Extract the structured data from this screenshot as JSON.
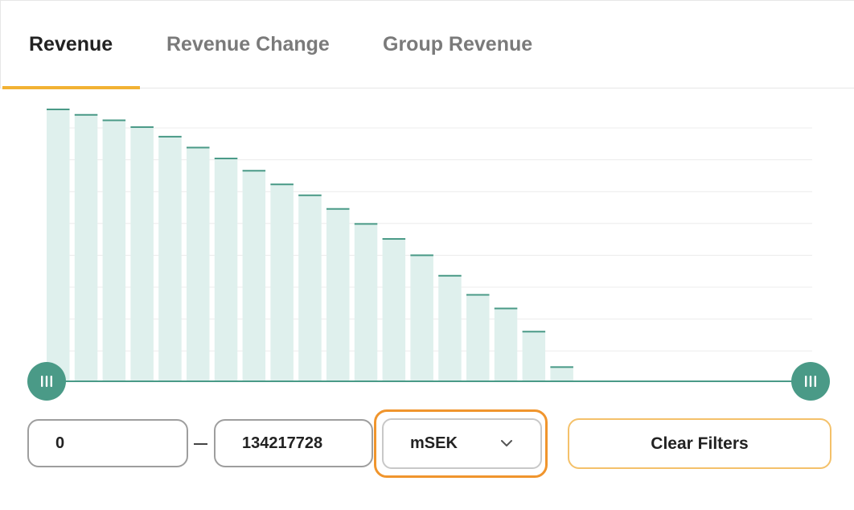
{
  "tabs": [
    {
      "label": "Revenue",
      "active": true
    },
    {
      "label": "Revenue Change",
      "active": false
    },
    {
      "label": "Group Revenue",
      "active": false
    }
  ],
  "filters": {
    "min_value": "0",
    "max_value": "134217728",
    "unit_selected": "mSEK",
    "clear_label": "Clear Filters"
  },
  "histogram": {
    "type": "bar",
    "relative_heights": [
      1.0,
      0.98,
      0.96,
      0.935,
      0.9,
      0.86,
      0.82,
      0.775,
      0.725,
      0.685,
      0.635,
      0.58,
      0.525,
      0.465,
      0.39,
      0.32,
      0.27,
      0.185,
      0.055
    ],
    "colors": {
      "bar_fill": "#dff0ed",
      "bar_top": "#4a9a87",
      "handle": "#4a9a87",
      "gridline": "#ececec",
      "accent_tab": "#f2b234",
      "dropdown_focus": "#f0952d",
      "clear_border": "#f4c16a"
    }
  },
  "icons": {
    "slider_handle": "grip-lines-icon",
    "dropdown": "chevron-down-icon"
  }
}
